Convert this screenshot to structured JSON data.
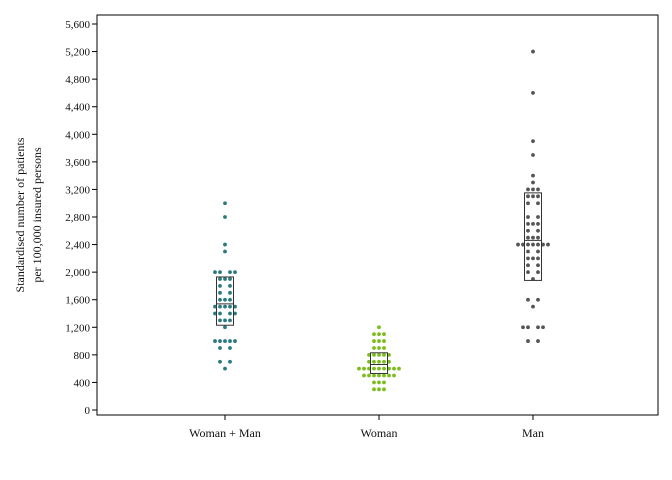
{
  "chart_data": {
    "type": "scatter",
    "title": "",
    "ylabel_lines": [
      "Standardised number of patients",
      "per 100,000 insured persons"
    ],
    "xlabel": "",
    "ylim": [
      0,
      5600
    ],
    "y_ticks": [
      0,
      400,
      800,
      1200,
      1600,
      2000,
      2400,
      2800,
      3200,
      3600,
      4000,
      4400,
      4800,
      5200,
      5600
    ],
    "y_tick_labels": [
      "0",
      "400",
      "800",
      "1,200",
      "1,600",
      "2,000",
      "2,400",
      "2,800",
      "3,200",
      "3,600",
      "4,000",
      "4,400",
      "4,800",
      "5,200",
      "5,600"
    ],
    "categories": [
      "Woman + Man",
      "Woman",
      "Man"
    ],
    "grid": false,
    "series": [
      {
        "category": "Woman + Man",
        "color": "#2a7a80",
        "points": [
          {
            "dx": 0,
            "y": 3000
          },
          {
            "dx": 0,
            "y": 2800
          },
          {
            "dx": 0,
            "y": 2400
          },
          {
            "dx": 0,
            "y": 2300
          },
          {
            "dx": -2,
            "y": 2000
          },
          {
            "dx": -1,
            "y": 2000
          },
          {
            "dx": 1,
            "y": 2000
          },
          {
            "dx": 2,
            "y": 2000
          },
          {
            "dx": -1,
            "y": 1900
          },
          {
            "dx": 0,
            "y": 1900
          },
          {
            "dx": 1,
            "y": 1900
          },
          {
            "dx": -1,
            "y": 1800
          },
          {
            "dx": 1,
            "y": 1800
          },
          {
            "dx": -1,
            "y": 1700
          },
          {
            "dx": 1,
            "y": 1700
          },
          {
            "dx": -1,
            "y": 1600
          },
          {
            "dx": 0,
            "y": 1600
          },
          {
            "dx": 1,
            "y": 1600
          },
          {
            "dx": -2,
            "y": 1500
          },
          {
            "dx": -1,
            "y": 1500
          },
          {
            "dx": 0,
            "y": 1500
          },
          {
            "dx": 1,
            "y": 1500
          },
          {
            "dx": 2,
            "y": 1500
          },
          {
            "dx": -2,
            "y": 1400
          },
          {
            "dx": -1,
            "y": 1400
          },
          {
            "dx": 1,
            "y": 1400
          },
          {
            "dx": 2,
            "y": 1400
          },
          {
            "dx": -1,
            "y": 1300
          },
          {
            "dx": 0,
            "y": 1300
          },
          {
            "dx": 1,
            "y": 1300
          },
          {
            "dx": 0,
            "y": 1200
          },
          {
            "dx": -2,
            "y": 1000
          },
          {
            "dx": -1,
            "y": 1000
          },
          {
            "dx": 0,
            "y": 1000
          },
          {
            "dx": 1,
            "y": 1000
          },
          {
            "dx": 2,
            "y": 1000
          },
          {
            "dx": -1,
            "y": 900
          },
          {
            "dx": 1,
            "y": 900
          },
          {
            "dx": -1,
            "y": 700
          },
          {
            "dx": 1,
            "y": 700
          },
          {
            "dx": 0,
            "y": 600
          }
        ],
        "box": {
          "q1": 1230,
          "median": 1540,
          "q3": 1930
        }
      },
      {
        "category": "Woman",
        "color": "#7cbd1e",
        "points": [
          {
            "dx": 0,
            "y": 1200
          },
          {
            "dx": -1,
            "y": 1100
          },
          {
            "dx": 0,
            "y": 1100
          },
          {
            "dx": 1,
            "y": 1100
          },
          {
            "dx": -1,
            "y": 1000
          },
          {
            "dx": 0,
            "y": 1000
          },
          {
            "dx": 1,
            "y": 1000
          },
          {
            "dx": -1,
            "y": 900
          },
          {
            "dx": 0,
            "y": 900
          },
          {
            "dx": 1,
            "y": 900
          },
          {
            "dx": -2,
            "y": 800
          },
          {
            "dx": -1,
            "y": 800
          },
          {
            "dx": 0,
            "y": 800
          },
          {
            "dx": 1,
            "y": 800
          },
          {
            "dx": 2,
            "y": 800
          },
          {
            "dx": -2,
            "y": 700
          },
          {
            "dx": -1,
            "y": 700
          },
          {
            "dx": 0,
            "y": 700
          },
          {
            "dx": 1,
            "y": 700
          },
          {
            "dx": 2,
            "y": 700
          },
          {
            "dx": -4,
            "y": 600
          },
          {
            "dx": -3,
            "y": 600
          },
          {
            "dx": -2,
            "y": 600
          },
          {
            "dx": -1,
            "y": 600
          },
          {
            "dx": 0,
            "y": 600
          },
          {
            "dx": 1,
            "y": 600
          },
          {
            "dx": 2,
            "y": 600
          },
          {
            "dx": 3,
            "y": 600
          },
          {
            "dx": 4,
            "y": 600
          },
          {
            "dx": -3,
            "y": 500
          },
          {
            "dx": -2,
            "y": 500
          },
          {
            "dx": -1,
            "y": 500
          },
          {
            "dx": 0,
            "y": 500
          },
          {
            "dx": 1,
            "y": 500
          },
          {
            "dx": 2,
            "y": 500
          },
          {
            "dx": 3,
            "y": 500
          },
          {
            "dx": -1,
            "y": 400
          },
          {
            "dx": 0,
            "y": 400
          },
          {
            "dx": 1,
            "y": 400
          },
          {
            "dx": -1,
            "y": 300
          },
          {
            "dx": 0,
            "y": 300
          },
          {
            "dx": 1,
            "y": 300
          }
        ],
        "box": {
          "q1": 530,
          "median": 660,
          "q3": 830
        }
      },
      {
        "category": "Man",
        "color": "#555555",
        "points": [
          {
            "dx": 0,
            "y": 5200
          },
          {
            "dx": 0,
            "y": 4600
          },
          {
            "dx": 0,
            "y": 3900
          },
          {
            "dx": 0,
            "y": 3700
          },
          {
            "dx": 0,
            "y": 3400
          },
          {
            "dx": 0,
            "y": 3300
          },
          {
            "dx": -1,
            "y": 3200
          },
          {
            "dx": 0,
            "y": 3200
          },
          {
            "dx": 1,
            "y": 3200
          },
          {
            "dx": -1,
            "y": 3100
          },
          {
            "dx": 0,
            "y": 3100
          },
          {
            "dx": 1,
            "y": 3100
          },
          {
            "dx": -1,
            "y": 3000
          },
          {
            "dx": 1,
            "y": 3000
          },
          {
            "dx": -1,
            "y": 2800
          },
          {
            "dx": 1,
            "y": 2800
          },
          {
            "dx": -1,
            "y": 2700
          },
          {
            "dx": 0,
            "y": 2700
          },
          {
            "dx": 1,
            "y": 2700
          },
          {
            "dx": -1,
            "y": 2600
          },
          {
            "dx": 1,
            "y": 2600
          },
          {
            "dx": -1,
            "y": 2500
          },
          {
            "dx": 0,
            "y": 2500
          },
          {
            "dx": 1,
            "y": 2500
          },
          {
            "dx": -3,
            "y": 2400
          },
          {
            "dx": -2,
            "y": 2400
          },
          {
            "dx": -1,
            "y": 2400
          },
          {
            "dx": 0,
            "y": 2400
          },
          {
            "dx": 1,
            "y": 2400
          },
          {
            "dx": 2,
            "y": 2400
          },
          {
            "dx": 3,
            "y": 2400
          },
          {
            "dx": -1,
            "y": 2300
          },
          {
            "dx": 1,
            "y": 2300
          },
          {
            "dx": -1,
            "y": 2200
          },
          {
            "dx": 0,
            "y": 2200
          },
          {
            "dx": 1,
            "y": 2200
          },
          {
            "dx": -1,
            "y": 2100
          },
          {
            "dx": 1,
            "y": 2100
          },
          {
            "dx": -1,
            "y": 2000
          },
          {
            "dx": 1,
            "y": 2000
          },
          {
            "dx": 0,
            "y": 1900
          },
          {
            "dx": -1,
            "y": 1600
          },
          {
            "dx": 1,
            "y": 1600
          },
          {
            "dx": 0,
            "y": 1500
          },
          {
            "dx": -2,
            "y": 1200
          },
          {
            "dx": -1,
            "y": 1200
          },
          {
            "dx": 1,
            "y": 1200
          },
          {
            "dx": 2,
            "y": 1200
          },
          {
            "dx": -1,
            "y": 1000
          },
          {
            "dx": 1,
            "y": 1000
          }
        ],
        "box": {
          "q1": 1880,
          "median": 2460,
          "q3": 3150
        }
      }
    ]
  }
}
